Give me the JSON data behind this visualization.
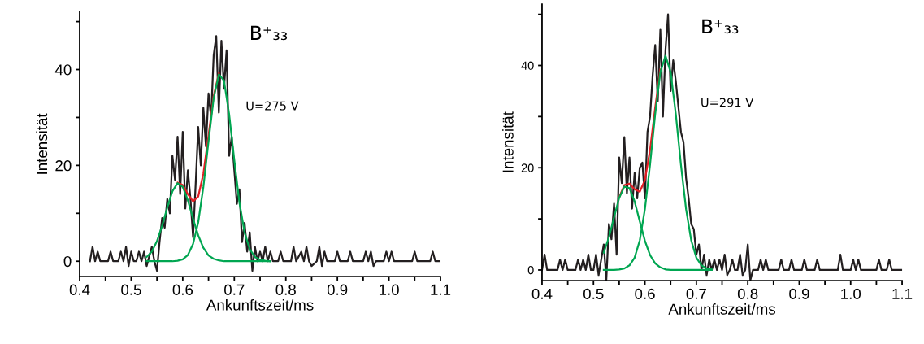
{
  "chart_data": [
    {
      "type": "line",
      "xlabel": "Ankunftszeit/ms",
      "ylabel": "Intensität",
      "annotations": [
        "B⁺₃₃",
        "U=275 V"
      ],
      "xlim": [
        0.4,
        1.1
      ],
      "ylim": [
        -3.2,
        52
      ],
      "xticks": [
        0.4,
        {
          "value": 0.45,
          "label": null
        },
        0.5,
        {
          "value": 0.55,
          "label": null
        },
        0.6,
        {
          "value": 0.65,
          "label": null
        },
        0.7,
        {
          "value": 0.75,
          "label": null
        },
        0.8,
        {
          "value": 0.85,
          "label": null
        },
        0.9,
        {
          "value": 0.95,
          "label": null
        },
        {
          "value": 1,
          "label": "1.0"
        },
        {
          "value": 1.05,
          "label": null
        },
        1.1
      ],
      "yticks": [
        0,
        {
          "value": 10,
          "label": null
        },
        20,
        {
          "value": 30,
          "label": null
        },
        40,
        {
          "value": 50,
          "label": null
        }
      ],
      "grid": false,
      "legend": false,
      "series": [
        {
          "color": "#231f20",
          "x": [
            0.42,
            0.425,
            0.43,
            0.435,
            0.44,
            0.455,
            0.46,
            0.465,
            0.475,
            0.48,
            0.485,
            0.49,
            0.495,
            0.5,
            0.505,
            0.51,
            0.515,
            0.52,
            0.525,
            0.53,
            0.535,
            0.54,
            0.545,
            0.55,
            0.555,
            0.56,
            0.565,
            0.57,
            0.575,
            0.58,
            0.585,
            0.59,
            0.595,
            0.6,
            0.605,
            0.61,
            0.615,
            0.62,
            0.625,
            0.63,
            0.635,
            0.64,
            0.645,
            0.65,
            0.655,
            0.66,
            0.665,
            0.67,
            0.675,
            0.68,
            0.685,
            0.69,
            0.695,
            0.7,
            0.705,
            0.71,
            0.715,
            0.72,
            0.725,
            0.73,
            0.735,
            0.74,
            0.745,
            0.75,
            0.755,
            0.76,
            0.765,
            0.77,
            0.775,
            0.785,
            0.79,
            0.795,
            0.81,
            0.815,
            0.82,
            0.83,
            0.835,
            0.84,
            0.845,
            0.85,
            0.86,
            0.865,
            0.87,
            0.875,
            0.88,
            0.895,
            0.9,
            0.905,
            0.92,
            0.925,
            0.93,
            0.95,
            0.955,
            0.96,
            0.965,
            0.97,
            0.975,
            0.99,
            0.995,
            1.0,
            1.005,
            1.01,
            1.045,
            1.05,
            1.055,
            1.08,
            1.085,
            1.09,
            1.1
          ],
          "values": [
            0,
            3,
            0,
            2,
            0,
            0,
            2,
            0,
            0,
            2,
            0,
            3,
            -1,
            2,
            0,
            0,
            2,
            0,
            2,
            -1,
            1,
            3,
            0,
            -2,
            4,
            9,
            7,
            13,
            10,
            22,
            17,
            26,
            14,
            27,
            11,
            19,
            13,
            5,
            16,
            28,
            20,
            32,
            24,
            35,
            30,
            43,
            47,
            31,
            46,
            36,
            44,
            22,
            26,
            19,
            12,
            15,
            4,
            8,
            2,
            6,
            -2,
            3,
            0,
            2,
            0,
            3,
            0,
            2,
            0,
            0,
            2,
            0,
            0,
            3,
            0,
            2,
            0,
            3,
            0,
            -1,
            0,
            3,
            -1,
            2,
            0,
            0,
            2,
            0,
            0,
            2,
            0,
            0,
            2,
            0,
            2,
            -1,
            0,
            0,
            2,
            0,
            2,
            0,
            0,
            2,
            0,
            0,
            2,
            0,
            0
          ]
        },
        {
          "color": "#e31e24",
          "x": [
            0.59,
            0.6,
            0.61,
            0.62,
            0.63,
            0.64,
            0.65,
            0.66,
            0.67
          ],
          "values": [
            16.4,
            15.9,
            14.0,
            12.5,
            13.5,
            18.3,
            26.2,
            34.5,
            39.2
          ]
        },
        {
          "color": "#00a651",
          "x": [
            0.53,
            0.54,
            0.55,
            0.56,
            0.57,
            0.58,
            0.59,
            0.6,
            0.61,
            0.62,
            0.63,
            0.64,
            0.65,
            0.66,
            0.67,
            0.68,
            0.69,
            0.7,
            0.71,
            0.72,
            0.73,
            0.74,
            0.75,
            0.76,
            0.77
          ],
          "values": [
            0.9,
            2.0,
            4.2,
            7.4,
            11.2,
            14.6,
            16.3,
            15.5,
            12.7,
            8.9,
            5.4,
            2.8,
            1.2,
            0.5,
            0.2,
            0,
            0,
            0,
            0,
            0,
            0,
            0,
            0,
            0,
            0
          ]
        },
        {
          "color": "#00a651",
          "x": [
            0.53,
            0.54,
            0.55,
            0.56,
            0.57,
            0.58,
            0.59,
            0.6,
            0.61,
            0.62,
            0.63,
            0.64,
            0.65,
            0.66,
            0.67,
            0.68,
            0.69,
            0.7,
            0.71,
            0.72,
            0.73,
            0.74,
            0.75,
            0.76,
            0.77
          ],
          "values": [
            0,
            0,
            0,
            0,
            0,
            0,
            0.1,
            0.4,
            1.3,
            3.6,
            8.1,
            15.5,
            25.0,
            34.0,
            39.0,
            37.7,
            30.7,
            21.1,
            12.2,
            6.0,
            2.5,
            0.9,
            0.3,
            0.1,
            0
          ]
        }
      ]
    },
    {
      "type": "line",
      "xlabel": "Ankunftszeit/ms",
      "ylabel": "Intensität",
      "annotations": [
        "B⁺₃₃",
        "U=291 V"
      ],
      "xlim": [
        0.4,
        1.1
      ],
      "ylim": [
        -2.1,
        52
      ],
      "xticks": [
        0.4,
        {
          "value": 0.45,
          "label": null
        },
        0.5,
        {
          "value": 0.55,
          "label": null
        },
        0.6,
        {
          "value": 0.65,
          "label": null
        },
        0.7,
        {
          "value": 0.75,
          "label": null
        },
        0.8,
        {
          "value": 0.85,
          "label": null
        },
        0.9,
        {
          "value": 0.95,
          "label": null
        },
        {
          "value": 1,
          "label": "1.0"
        },
        {
          "value": 1.05,
          "label": null
        },
        1.1
      ],
      "yticks": [
        0,
        {
          "value": 10,
          "label": null
        },
        20,
        {
          "value": 30,
          "label": null
        },
        40,
        {
          "value": 50,
          "label": null
        }
      ],
      "grid": false,
      "legend": false,
      "series": [
        {
          "color": "#231f20",
          "x": [
            0.4,
            0.405,
            0.41,
            0.43,
            0.435,
            0.44,
            0.445,
            0.45,
            0.465,
            0.47,
            0.475,
            0.48,
            0.485,
            0.49,
            0.495,
            0.5,
            0.505,
            0.51,
            0.515,
            0.52,
            0.525,
            0.53,
            0.535,
            0.54,
            0.545,
            0.55,
            0.555,
            0.56,
            0.565,
            0.57,
            0.575,
            0.58,
            0.585,
            0.59,
            0.595,
            0.6,
            0.605,
            0.61,
            0.615,
            0.62,
            0.625,
            0.63,
            0.635,
            0.64,
            0.645,
            0.65,
            0.655,
            0.66,
            0.665,
            0.67,
            0.675,
            0.68,
            0.685,
            0.69,
            0.695,
            0.7,
            0.705,
            0.71,
            0.715,
            0.72,
            0.725,
            0.73,
            0.735,
            0.74,
            0.745,
            0.75,
            0.755,
            0.76,
            0.765,
            0.77,
            0.775,
            0.78,
            0.785,
            0.79,
            0.795,
            0.8,
            0.805,
            0.81,
            0.82,
            0.825,
            0.83,
            0.835,
            0.84,
            0.86,
            0.865,
            0.87,
            0.88,
            0.885,
            0.89,
            0.905,
            0.91,
            0.915,
            0.93,
            0.935,
            0.94,
            0.975,
            0.98,
            0.985,
            1.0,
            1.005,
            1.01,
            1.015,
            1.02,
            1.05,
            1.055,
            1.06,
            1.07,
            1.075,
            1.08,
            1.1
          ],
          "values": [
            0,
            3,
            0,
            0,
            2,
            0,
            2,
            0,
            0,
            2,
            0,
            2,
            0,
            3,
            0,
            0,
            3,
            -1,
            2,
            5,
            -2,
            9,
            6,
            13,
            3,
            22,
            17,
            26,
            15,
            22,
            12,
            19,
            14,
            20,
            21,
            14,
            27,
            30,
            38,
            44,
            33,
            47,
            30,
            43,
            50,
            35,
            41,
            37,
            32,
            27,
            25,
            18,
            14,
            9,
            8,
            3,
            5,
            0,
            3,
            -1,
            2,
            0,
            2,
            0,
            2,
            0,
            3,
            -1,
            0,
            2,
            0,
            0,
            3,
            -1,
            0,
            5,
            -2,
            0,
            0,
            2,
            0,
            2,
            0,
            0,
            2,
            0,
            0,
            2,
            0,
            0,
            2,
            0,
            0,
            2,
            0,
            0,
            3,
            0,
            0,
            2,
            0,
            2,
            0,
            0,
            2,
            0,
            0,
            2,
            0,
            0
          ]
        },
        {
          "color": "#e31e24",
          "x": [
            0.55,
            0.56,
            0.57,
            0.58,
            0.59,
            0.6,
            0.61,
            0.62,
            0.63
          ],
          "values": [
            14.2,
            16.6,
            16.9,
            15.8,
            15.3,
            17.6,
            23.5,
            31.8,
            39.2
          ]
        },
        {
          "color": "#00a651",
          "x": [
            0.52,
            0.53,
            0.54,
            0.55,
            0.56,
            0.57,
            0.58,
            0.59,
            0.6,
            0.61,
            0.62,
            0.63,
            0.64,
            0.65,
            0.66,
            0.67,
            0.68,
            0.69,
            0.7,
            0.71,
            0.72,
            0.73
          ],
          "values": [
            3.4,
            6.4,
            10.3,
            14.1,
            16.3,
            16.0,
            13.4,
            9.5,
            5.7,
            2.9,
            1.3,
            0.5,
            0.1,
            0,
            0,
            0,
            0,
            0,
            0,
            0,
            0,
            0
          ]
        },
        {
          "color": "#00a651",
          "x": [
            0.52,
            0.53,
            0.54,
            0.55,
            0.56,
            0.57,
            0.58,
            0.59,
            0.6,
            0.61,
            0.62,
            0.63,
            0.64,
            0.65,
            0.66,
            0.67,
            0.68,
            0.69,
            0.7,
            0.71,
            0.72,
            0.73
          ],
          "values": [
            0,
            0,
            0,
            0.1,
            0.3,
            0.9,
            2.4,
            5.8,
            11.9,
            20.6,
            30.5,
            38.7,
            41.9,
            38.7,
            30.5,
            20.6,
            11.9,
            5.8,
            2.4,
            0.9,
            0.3,
            0.1
          ]
        }
      ]
    }
  ]
}
